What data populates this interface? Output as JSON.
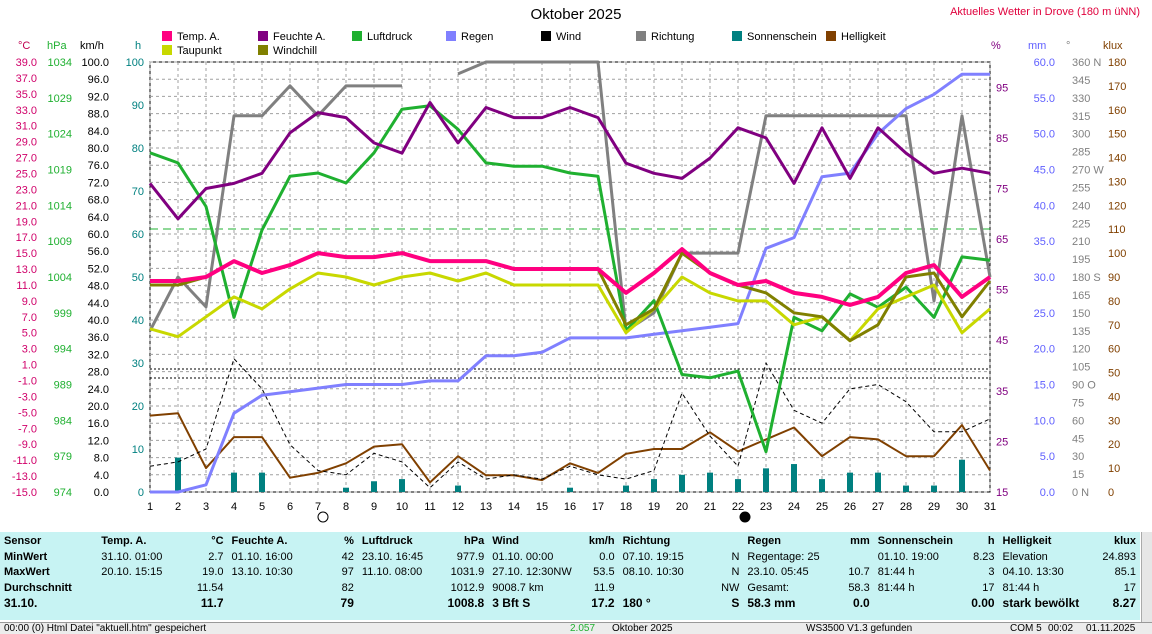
{
  "title": "Oktober 2025",
  "subtitle": "Aktuelles Wetter in Drove (180 m üNN)",
  "legend": [
    {
      "label": "Temp. A.",
      "color": "#ff0080"
    },
    {
      "label": "Taupunkt",
      "color": "#c8d800"
    },
    {
      "label": "Feuchte A.",
      "color": "#800080"
    },
    {
      "label": "Windchill",
      "color": "#808000"
    },
    {
      "label": "Luftdruck",
      "color": "#1fb030"
    },
    {
      "label": "Regen",
      "color": "#8080ff"
    },
    {
      "label": "Wind",
      "color": "#000000"
    },
    {
      "label": "Richtung",
      "color": "#808080"
    },
    {
      "label": "Sonnenschein",
      "color": "#008080"
    },
    {
      "label": "Helligkeit",
      "color": "#804000"
    }
  ],
  "units": {
    "temp": "°C",
    "press": "hPa",
    "wind": "km/h",
    "sun": "h",
    "hum": "%",
    "rain": "mm",
    "dir": "°",
    "lux": "klux"
  },
  "chart_data": {
    "type": "line",
    "title": "Oktober 2025",
    "x": [
      1,
      2,
      3,
      4,
      5,
      6,
      7,
      8,
      9,
      10,
      11,
      12,
      13,
      14,
      15,
      16,
      17,
      18,
      19,
      20,
      21,
      22,
      23,
      24,
      25,
      26,
      27,
      28,
      29,
      30,
      31
    ],
    "axes": {
      "temp": {
        "label": "°C",
        "range": [
          -15,
          39
        ],
        "ticks": [
          "39.0",
          "37.0",
          "35.0",
          "33.0",
          "31.0",
          "29.0",
          "27.0",
          "25.0",
          "23.0",
          "21.0",
          "19.0",
          "17.0",
          "15.0",
          "13.0",
          "11.0",
          "9.0",
          "7.0",
          "5.0",
          "3.0",
          "1.0",
          "-1.0",
          "-3.0",
          "-5.0",
          "-7.0",
          "-9.0",
          "-11.0",
          "-13.0",
          "-15.0"
        ]
      },
      "press": {
        "label": "hPa",
        "ticks": [
          "1034",
          "1029",
          "1024",
          "1019",
          "1014",
          "1009",
          "1004",
          "999",
          "994",
          "989",
          "984",
          "979",
          "974"
        ]
      },
      "wind": {
        "label": "km/h",
        "range": [
          0,
          100
        ],
        "ticks": [
          "100.0",
          "96.0",
          "92.0",
          "88.0",
          "84.0",
          "80.0",
          "76.0",
          "72.0",
          "68.0",
          "64.0",
          "60.0",
          "56.0",
          "52.0",
          "48.0",
          "44.0",
          "40.0",
          "36.0",
          "32.0",
          "28.0",
          "24.0",
          "20.0",
          "16.0",
          "12.0",
          "8.0",
          "4.0",
          "0.0"
        ]
      },
      "sun": {
        "label": "h",
        "range": [
          0,
          100
        ],
        "ticks": [
          "100",
          "90",
          "80",
          "70",
          "60",
          "50",
          "40",
          "30",
          "20",
          "10",
          "0"
        ]
      },
      "hum": {
        "label": "%",
        "range": [
          15,
          100
        ],
        "ticks": [
          "95",
          "85",
          "75",
          "65",
          "55",
          "45",
          "35",
          "25",
          "15"
        ]
      },
      "rain": {
        "label": "mm",
        "range": [
          0,
          60
        ],
        "ticks": [
          "60.0",
          "55.0",
          "50.0",
          "45.0",
          "40.0",
          "35.0",
          "30.0",
          "25.0",
          "20.0",
          "15.0",
          "10.0",
          "5.0",
          "0.0"
        ]
      },
      "dir": {
        "label": "°",
        "range": [
          0,
          360
        ],
        "ticks": [
          "360 N",
          "345",
          "330",
          "315",
          "300",
          "285",
          "270 W",
          "255",
          "240",
          "225",
          "210",
          "195",
          "180 S",
          "165",
          "150",
          "135",
          "120",
          "105",
          "90 O",
          "75",
          "60",
          "45",
          "30",
          "15",
          "0 N"
        ]
      },
      "lux": {
        "label": "klux",
        "range": [
          0,
          180
        ],
        "ticks": [
          "180",
          "170",
          "160",
          "150",
          "140",
          "130",
          "120",
          "110",
          "100",
          "90",
          "80",
          "70",
          "60",
          "50",
          "40",
          "30",
          "20",
          "10",
          "0"
        ]
      }
    },
    "series": [
      {
        "name": "Temp. A.",
        "axis": "temp",
        "values": [
          11.5,
          11.5,
          12,
          14,
          12.5,
          13.5,
          15,
          14.5,
          14.5,
          15,
          14,
          14,
          14,
          13,
          13,
          13,
          13,
          10,
          12.5,
          15.5,
          12.5,
          11,
          11.5,
          10,
          9.5,
          8.5,
          9.5,
          12.5,
          13.5,
          9.5,
          12
        ]
      },
      {
        "name": "Taupunkt",
        "axis": "temp",
        "values": [
          5.5,
          4.5,
          7,
          9.5,
          8,
          10.5,
          12.5,
          12,
          11,
          12,
          12.5,
          11.5,
          12.5,
          11,
          11,
          11,
          11,
          5,
          8,
          12,
          10,
          9,
          9,
          6,
          7,
          4,
          8,
          9.5,
          11,
          5,
          8
        ]
      },
      {
        "name": "Windchill",
        "axis": "temp",
        "values": [
          11,
          11,
          12,
          14,
          12.5,
          13.5,
          15,
          14.5,
          14.5,
          15,
          14,
          14,
          14,
          13,
          13,
          13,
          13,
          6,
          8,
          15,
          12.5,
          11,
          10,
          7.5,
          7,
          4,
          6,
          12,
          12.5,
          7,
          11.5
        ]
      },
      {
        "name": "Feuchte A.",
        "axis": "hum",
        "values": [
          76,
          69,
          75,
          76,
          78,
          86,
          90,
          89,
          84,
          82,
          92,
          84,
          91,
          89,
          89,
          91,
          89,
          80,
          78,
          77,
          81,
          87,
          85,
          76,
          87,
          77,
          87,
          82,
          78,
          79,
          78
        ]
      },
      {
        "name": "Luftdruck",
        "axis": "press",
        "values": [
          1024.5,
          1023,
          1016.5,
          1000,
          1013,
          1021,
          1021.5,
          1020,
          1024.5,
          1031,
          1031.5,
          1028,
          1023,
          1022.5,
          1022.5,
          1021.5,
          1021,
          998,
          1002.5,
          991.5,
          991,
          992,
          980,
          1000,
          998,
          1003.5,
          1001.5,
          1004.5,
          1000,
          1009,
          1008.5
        ]
      },
      {
        "name": "Regen",
        "axis": "rain",
        "values": [
          0,
          0,
          1,
          11,
          13.5,
          14,
          14.5,
          15,
          15,
          15,
          15.5,
          15.5,
          19,
          19,
          19.5,
          21.5,
          21.5,
          21.5,
          22,
          22.5,
          23,
          23.5,
          34,
          35.5,
          44,
          44.5,
          50,
          53.5,
          55.5,
          58.3,
          58.3
        ]
      },
      {
        "name": "Wind",
        "axis": "wind",
        "values": [
          6,
          7,
          10,
          31,
          24,
          11,
          5,
          4,
          9,
          7,
          1,
          7,
          3,
          4,
          3,
          6,
          4,
          3,
          5,
          23,
          13,
          6,
          30,
          19,
          16,
          24,
          25,
          21,
          14,
          14,
          17
        ]
      },
      {
        "name": "Richtung",
        "axis": "dir",
        "values": [
          135,
          180,
          155,
          315,
          315,
          340,
          315,
          340,
          340,
          340,
          null,
          350,
          360,
          360,
          360,
          360,
          360,
          135,
          150,
          200,
          200,
          200,
          315,
          315,
          315,
          315,
          315,
          315,
          160,
          315,
          180
        ]
      },
      {
        "name": "Sonnenschein",
        "axis": "sun",
        "values": [
          0,
          8,
          0,
          4.5,
          4.5,
          0,
          0,
          1,
          2.5,
          3,
          0,
          1.5,
          0,
          0,
          0,
          1,
          0,
          1.5,
          3,
          4,
          4.5,
          3,
          5.5,
          6.5,
          3,
          4.5,
          4.5,
          1.5,
          1.5,
          7.5,
          0
        ]
      },
      {
        "name": "Helligkeit",
        "axis": "lux",
        "values": [
          32,
          33,
          10,
          23,
          23,
          6,
          8,
          12,
          19,
          20,
          4,
          15,
          7,
          7,
          5,
          12,
          8,
          16,
          18,
          18,
          25,
          17,
          22,
          27,
          15,
          23,
          22,
          15,
          15,
          28,
          9
        ]
      }
    ]
  },
  "markers": {
    "day7": "○",
    "day22": "●"
  },
  "info": {
    "sensor": {
      "h": "Sensor",
      "rows": [
        "MinWert",
        "MaxWert",
        "Durchschnitt",
        "31.10."
      ]
    },
    "temp": {
      "h": "Temp. A.",
      "u": "°C",
      "rows": [
        [
          "31.10.  01:00",
          "2.7"
        ],
        [
          "20.10.  15:15",
          "19.0"
        ],
        [
          "",
          "11.54"
        ],
        [
          "",
          "11.7"
        ]
      ]
    },
    "hum": {
      "h": "Feuchte A.",
      "u": "%",
      "rows": [
        [
          "01.10.  16:00",
          "42"
        ],
        [
          "13.10.  10:30",
          "97"
        ],
        [
          "",
          "82"
        ],
        [
          "",
          "79"
        ]
      ]
    },
    "press": {
      "h": "Luftdruck",
      "u": "hPa",
      "rows": [
        [
          "23.10.  16:45",
          "977.9"
        ],
        [
          "11.10.  08:00",
          "1031.9"
        ],
        [
          "",
          "1012.9"
        ],
        [
          "",
          "1008.8"
        ]
      ]
    },
    "wind": {
      "h": "Wind",
      "u": "km/h",
      "rows": [
        [
          "01.10.  00:00",
          "0.0"
        ],
        [
          "27.10.  12:30NW",
          "53.5"
        ],
        [
          "9008.7 km",
          "11.9"
        ],
        [
          "3 Bft S",
          "17.2"
        ]
      ]
    },
    "dir": {
      "h": "Richtung",
      "u": "",
      "rows": [
        [
          "07.10.  19:15",
          "N"
        ],
        [
          "08.10.  10:30",
          "N"
        ],
        [
          "",
          "NW"
        ],
        [
          "180 °",
          "S"
        ]
      ]
    },
    "rain": {
      "h": "Regen",
      "u": "mm",
      "rows": [
        [
          "Regentage: 25",
          ""
        ],
        [
          "23.10.  05:45",
          "10.7"
        ],
        [
          "Gesamt:",
          "58.3"
        ],
        [
          "58.3 mm",
          "0.0"
        ]
      ]
    },
    "sun": {
      "h": "Sonnenschein",
      "u": "h",
      "rows": [
        [
          "01.10.  19:00",
          "8.23"
        ],
        [
          "81:44 h",
          "3"
        ],
        [
          "81:44 h",
          "17"
        ],
        [
          "",
          "0.00"
        ]
      ]
    },
    "lux": {
      "h": "Helligkeit",
      "u": "klux",
      "rows": [
        [
          "Elevation",
          "24.893"
        ],
        [
          "04.10.  13:30",
          "85.1"
        ],
        [
          "81:44 h",
          "17"
        ],
        [
          "stark bewölkt",
          "8.27"
        ]
      ]
    }
  },
  "status": [
    "00:00  (0)  Html Datei  \"aktuell.htm\"  gespeichert",
    "2.057",
    "Oktober 2025",
    "WS3500 V1.3 gefunden",
    "COM 5",
    "00:02",
    "01.11.2025"
  ]
}
